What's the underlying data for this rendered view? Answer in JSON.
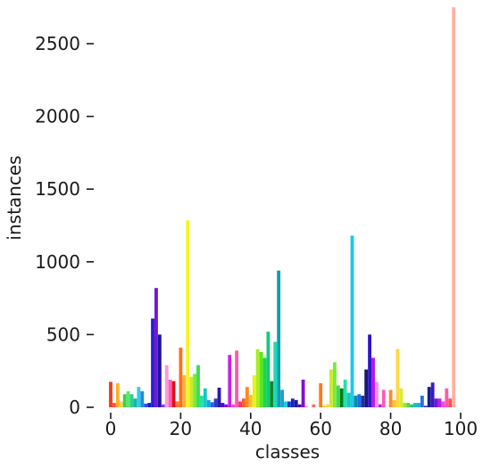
{
  "chart_data": {
    "type": "bar",
    "xlabel": "classes",
    "ylabel": "instances",
    "xlim": [
      -1,
      102
    ],
    "ylim": [
      0,
      2750
    ],
    "xticks": [
      0,
      20,
      40,
      60,
      80,
      100
    ],
    "yticks": [
      0,
      500,
      1000,
      1500,
      2000,
      2500
    ],
    "grid": false,
    "legend": "none",
    "x": [
      0,
      1,
      2,
      3,
      4,
      5,
      6,
      7,
      8,
      9,
      10,
      11,
      12,
      13,
      14,
      15,
      16,
      17,
      18,
      19,
      20,
      21,
      22,
      23,
      24,
      25,
      26,
      27,
      28,
      29,
      30,
      31,
      32,
      33,
      34,
      35,
      36,
      37,
      38,
      39,
      40,
      41,
      42,
      43,
      44,
      45,
      46,
      47,
      48,
      49,
      50,
      51,
      52,
      53,
      54,
      55,
      56,
      57,
      58,
      59,
      60,
      61,
      62,
      63,
      64,
      65,
      66,
      67,
      68,
      69,
      70,
      71,
      72,
      73,
      74,
      75,
      76,
      77,
      78,
      79,
      80,
      81,
      82,
      83,
      84,
      85,
      86,
      87,
      88,
      89,
      90,
      91,
      92,
      93,
      94,
      95,
      96,
      97,
      98,
      99,
      100,
      101
    ],
    "values": [
      175,
      30,
      165,
      40,
      90,
      110,
      90,
      60,
      140,
      110,
      25,
      30,
      610,
      820,
      500,
      20,
      290,
      190,
      180,
      40,
      410,
      220,
      1285,
      210,
      230,
      290,
      80,
      130,
      50,
      35,
      60,
      135,
      30,
      20,
      360,
      20,
      390,
      40,
      60,
      140,
      85,
      220,
      400,
      380,
      340,
      520,
      180,
      450,
      940,
      120,
      40,
      40,
      60,
      50,
      20,
      190,
      10,
      0,
      20,
      0,
      165,
      10,
      20,
      260,
      310,
      150,
      130,
      190,
      100,
      1180,
      80,
      90,
      80,
      260,
      500,
      340,
      175,
      20,
      120,
      0,
      120,
      50,
      400,
      130,
      30,
      30,
      20,
      30,
      30,
      80,
      10,
      140,
      170,
      60,
      60,
      40,
      130,
      60,
      2750,
      0,
      0,
      0
    ],
    "colors": [
      "#f03c1e",
      "#ff4d4d",
      "#ffb020",
      "#f7d24a",
      "#3ad14a",
      "#5ce66f",
      "#2bd18c",
      "#15b5b0",
      "#38c9e6",
      "#1e8fd6",
      "#3050e0",
      "#1620b8",
      "#2e1ad6",
      "#6a18d8",
      "#1e1494",
      "#9030ff",
      "#ff99d6",
      "#ff5cb8",
      "#e01010",
      "#ff7a30",
      "#ff7018",
      "#ffb040",
      "#f5f520",
      "#c6ec2c",
      "#7ee83a",
      "#3cdb55",
      "#22e2a8",
      "#18c6c6",
      "#1e9de8",
      "#2a60e6",
      "#3037c8",
      "#2619b2",
      "#4a12c6",
      "#7a16d6",
      "#c81ee6",
      "#ff3ad0",
      "#ff5aa8",
      "#ff2e6e",
      "#ff5a28",
      "#ff8a18",
      "#ffc022",
      "#e8f220",
      "#a8ee1e",
      "#58e624",
      "#1ed840",
      "#18c878",
      "#0b8a2e",
      "#1ed8b8",
      "#0f9eb0",
      "#1e9ed8",
      "#1ec8e6",
      "#1040c8",
      "#1828b8",
      "#2814a0",
      "#4010b0",
      "#8010d0",
      "#ff9adc",
      "#ffb0e0",
      "#ff6a6a",
      "#ff9a5a",
      "#ff7a18",
      "#ffc050",
      "#f5e030",
      "#c6ec2c",
      "#7ee83a",
      "#3cdb55",
      "#0a7a20",
      "#22e2a8",
      "#18c6c6",
      "#1ec8e6",
      "#0f8ca8",
      "#1e6ee8",
      "#1e2ea8",
      "#181870",
      "#2e14c8",
      "#b018e6",
      "#ff88e8",
      "#c818e6",
      "#ff5ab8",
      "#ff4858",
      "#ff8a30",
      "#ffc038",
      "#ffd740",
      "#d6ee2a",
      "#9ae830",
      "#4ed84a",
      "#22c87a",
      "#18bcbc",
      "#20a8e0",
      "#2870e6",
      "#1f2fbf",
      "#1c1a90",
      "#3a18c8",
      "#7018d8",
      "#b81ee6",
      "#ff44d8",
      "#ff5aa8",
      "#ff5050",
      "#ffb0a0",
      "#ff9a90",
      "#ff8888",
      "#ff7070"
    ]
  }
}
